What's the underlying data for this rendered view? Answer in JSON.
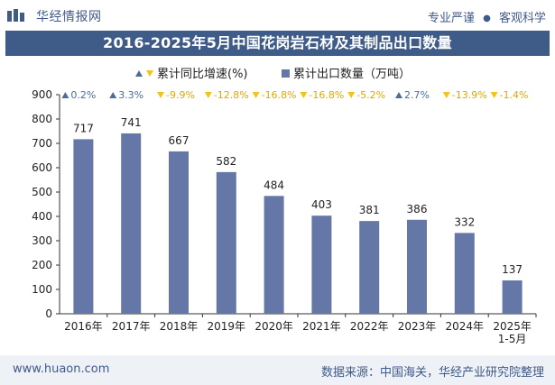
{
  "header": {
    "brand": "华经情报网",
    "slogan_left": "专业严谨",
    "slogan_right": "客观科学"
  },
  "chart_title": "2016-2025年5月中国花岗岩石材及其制品出口数量",
  "footer": {
    "url": "www.huaon.com",
    "source": "数据来源：中国海关，华经产业研究院整理"
  },
  "colors": {
    "bar": "#6477a6",
    "up": "#4a6d9c",
    "down": "#f0c419",
    "title_bg": "#3f5b87"
  },
  "chart_data": {
    "type": "bar",
    "title": "2016-2025年5月中国花岗岩石材及其制品出口数量",
    "categories": [
      "2016年",
      "2017年",
      "2018年",
      "2019年",
      "2020年",
      "2021年",
      "2022年",
      "2023年",
      "2024年",
      "2025年\n1-5月"
    ],
    "series": [
      {
        "name": "累计出口数量（万吨）",
        "values": [
          717,
          741,
          667,
          582,
          484,
          403,
          381,
          386,
          332,
          137
        ]
      }
    ],
    "yoy": {
      "name": "累计同比增速(%)",
      "values": [
        0.2,
        3.3,
        -9.9,
        -12.8,
        -16.8,
        -16.8,
        -5.2,
        2.7,
        -13.9,
        -1.4
      ],
      "labels": [
        "0.2%",
        "3.3%",
        "-9.9%",
        "-12.8%",
        "-16.8%",
        "-16.8%",
        "-5.2%",
        "2.7%",
        "-13.9%",
        "-1.4%"
      ]
    },
    "yticks": [
      0,
      100,
      200,
      300,
      400,
      500,
      600,
      700,
      800,
      900
    ],
    "ylim": [
      0,
      900
    ],
    "xlabel": "",
    "ylabel": "",
    "legend": [
      "累计同比增速(%)",
      "累计出口数量（万吨）"
    ],
    "legend_position": "top-center"
  }
}
